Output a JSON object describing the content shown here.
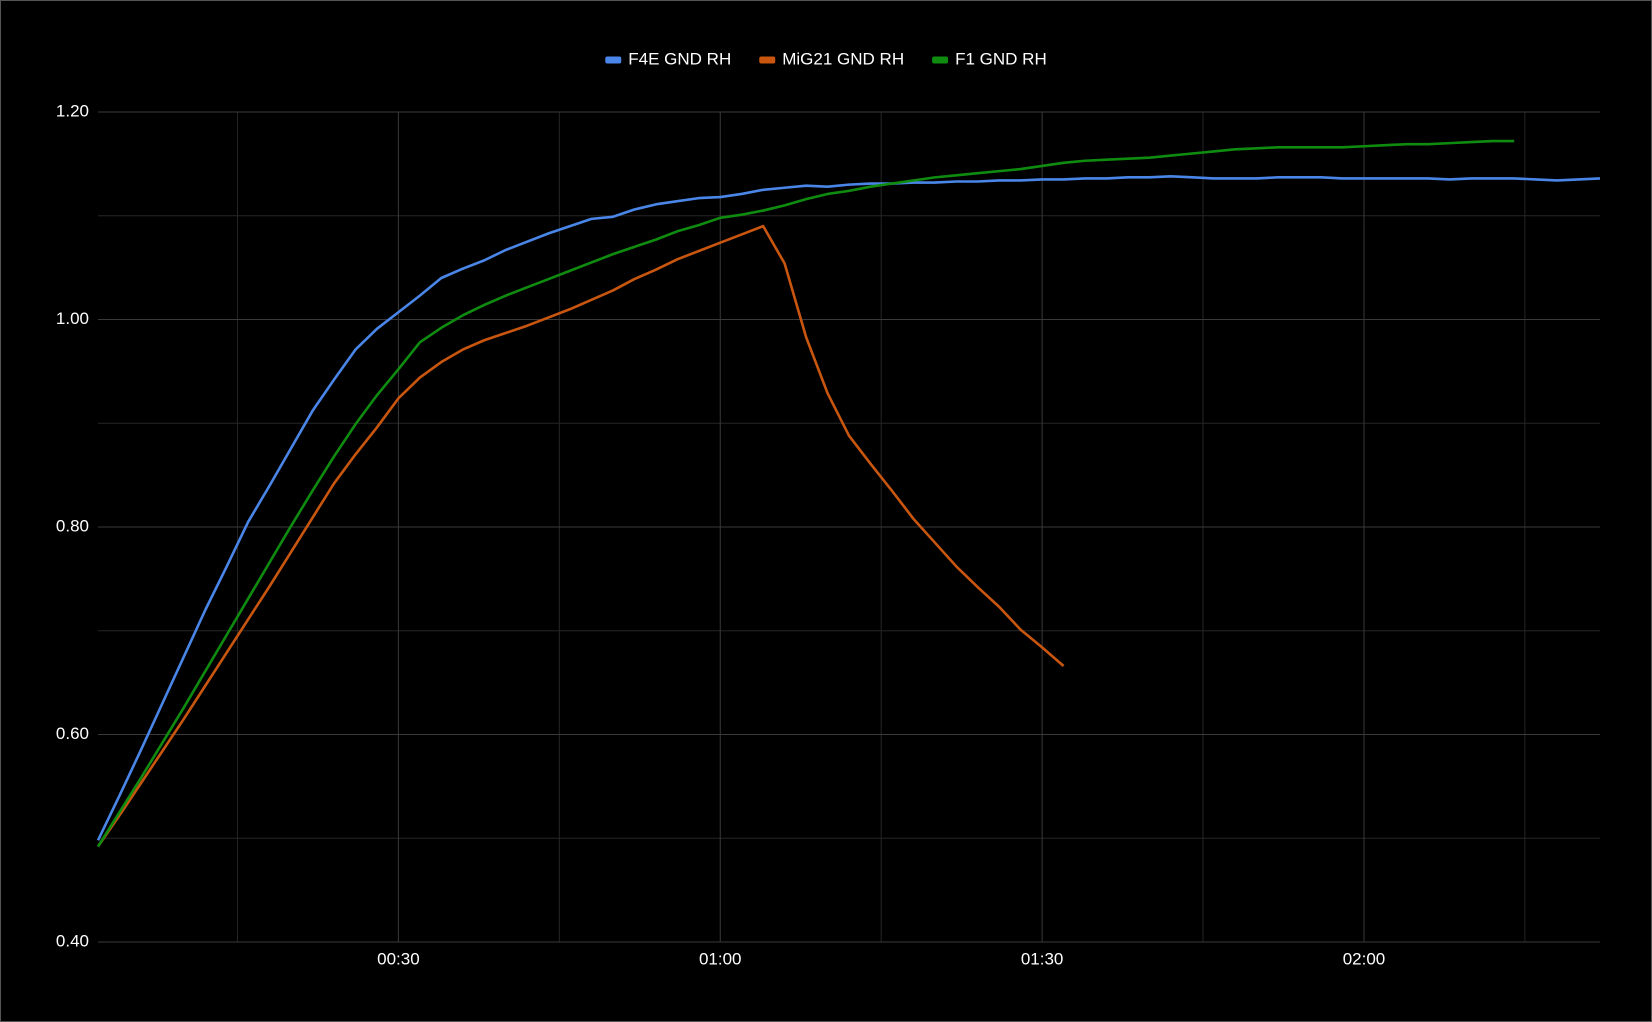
{
  "chart_data": {
    "type": "line",
    "x": [
      2,
      4,
      6,
      8,
      10,
      12,
      14,
      16,
      18,
      20,
      22,
      24,
      26,
      28,
      30,
      32,
      34,
      36,
      38,
      40,
      42,
      44,
      46,
      48,
      50,
      52,
      54,
      56,
      58,
      60,
      62,
      64,
      66,
      68,
      70,
      72,
      74,
      76,
      78,
      80,
      82,
      84,
      86,
      88,
      90,
      92,
      94,
      96,
      98,
      100,
      102,
      104,
      106,
      108,
      110,
      112,
      114,
      116,
      118,
      120,
      122,
      124,
      126,
      128,
      130,
      132,
      134,
      136,
      138,
      140,
      142
    ],
    "series": [
      {
        "name": "F4E GND RH",
        "color": "#4a86e8",
        "values": [
          0.498,
          0.541,
          0.585,
          0.63,
          0.675,
          0.72,
          0.762,
          0.805,
          0.84,
          0.876,
          0.912,
          0.942,
          0.971,
          0.991,
          1.007,
          1.023,
          1.04,
          1.049,
          1.057,
          1.067,
          1.075,
          1.083,
          1.09,
          1.097,
          1.099,
          1.106,
          1.111,
          1.114,
          1.117,
          1.118,
          1.121,
          1.125,
          1.127,
          1.129,
          1.128,
          1.13,
          1.131,
          1.131,
          1.132,
          1.132,
          1.133,
          1.133,
          1.134,
          1.134,
          1.135,
          1.135,
          1.136,
          1.136,
          1.137,
          1.137,
          1.138,
          1.137,
          1.136,
          1.136,
          1.136,
          1.137,
          1.137,
          1.137,
          1.136,
          1.136,
          1.136,
          1.136,
          1.136,
          1.135,
          1.136,
          1.136,
          1.136,
          1.135,
          1.134,
          1.135,
          1.136
        ]
      },
      {
        "name": "MiG21 GND RH",
        "color": "#c9560f",
        "values": [
          0.492,
          0.522,
          0.553,
          0.584,
          0.615,
          0.647,
          0.679,
          0.711,
          0.743,
          0.776,
          0.809,
          0.842,
          0.87,
          0.896,
          0.924,
          0.944,
          0.959,
          0.971,
          0.98,
          0.987,
          0.994,
          1.002,
          1.01,
          1.019,
          1.028,
          1.039,
          1.048,
          1.058,
          1.066,
          1.074,
          1.082,
          1.09,
          1.054,
          0.983,
          0.929,
          0.888,
          0.861,
          0.835,
          0.808,
          0.785,
          0.762,
          0.742,
          0.723,
          0.701,
          0.684,
          0.666,
          null,
          null,
          null,
          null,
          null,
          null,
          null,
          null,
          null,
          null,
          null,
          null,
          null,
          null,
          null,
          null,
          null,
          null,
          null,
          null,
          null,
          null,
          null,
          null,
          null
        ]
      },
      {
        "name": "F1 GND RH",
        "color": "#0f8c0f",
        "values": [
          0.492,
          0.525,
          0.558,
          0.592,
          0.626,
          0.661,
          0.696,
          0.731,
          0.766,
          0.801,
          0.835,
          0.868,
          0.899,
          0.927,
          0.952,
          0.978,
          0.992,
          1.004,
          1.014,
          1.023,
          1.031,
          1.039,
          1.047,
          1.055,
          1.063,
          1.07,
          1.077,
          1.085,
          1.091,
          1.098,
          1.101,
          1.105,
          1.11,
          1.116,
          1.121,
          1.124,
          1.128,
          1.131,
          1.134,
          1.137,
          1.139,
          1.141,
          1.143,
          1.145,
          1.148,
          1.151,
          1.153,
          1.154,
          1.155,
          1.156,
          1.158,
          1.16,
          1.162,
          1.164,
          1.165,
          1.166,
          1.166,
          1.166,
          1.166,
          1.167,
          1.168,
          1.169,
          1.169,
          1.17,
          1.171,
          1.172,
          1.172,
          null,
          null,
          null,
          null
        ]
      }
    ],
    "xlim": [
      2,
      142
    ],
    "xticks": [
      {
        "value": 30,
        "label": "00:30"
      },
      {
        "value": 60,
        "label": "01:00"
      },
      {
        "value": 90,
        "label": "01:30"
      },
      {
        "value": 120,
        "label": "02:00"
      }
    ],
    "xminorticks": [
      15,
      45,
      75,
      105,
      135
    ],
    "ylim": [
      0.4,
      1.2
    ],
    "yticks": [
      {
        "value": 0.4,
        "label": "0.40"
      },
      {
        "value": 0.6,
        "label": "0.60"
      },
      {
        "value": 0.8,
        "label": "0.80"
      },
      {
        "value": 1.0,
        "label": "1.00"
      },
      {
        "value": 1.2,
        "label": "1.20"
      }
    ],
    "yminorticks": [
      0.5,
      0.7,
      0.9,
      1.1
    ],
    "grid": true,
    "legend": "top"
  }
}
